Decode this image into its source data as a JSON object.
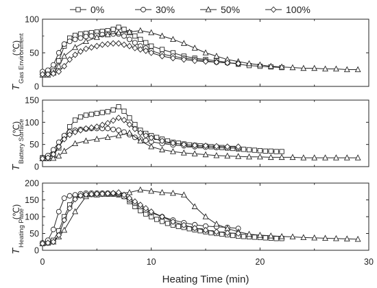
{
  "chart_data": {
    "type": "line",
    "legend": {
      "placement": "top",
      "entries": [
        {
          "name": "0%",
          "marker": "square"
        },
        {
          "name": "30%",
          "marker": "circle"
        },
        {
          "name": "50%",
          "marker": "triangle"
        },
        {
          "name": "100%",
          "marker": "diamond"
        }
      ]
    },
    "xlabel": "Heating Time (min)",
    "xlim": [
      0,
      30
    ],
    "xticks": [
      0,
      10,
      20,
      30
    ],
    "unit_label": "(℃)",
    "panels": [
      {
        "ylabel_main": "T",
        "ylabel_sub": "Gas Environment",
        "ylim": [
          0,
          100
        ],
        "yticks": [
          0,
          50,
          100
        ],
        "series": [
          {
            "name": "0%",
            "x": [
              0,
              0.5,
              1,
              1.5,
              2,
              2.5,
              3,
              3.5,
              4,
              4.5,
              5,
              5.5,
              6,
              6.5,
              7,
              7.5,
              8,
              8.5,
              9,
              9.5,
              10,
              11,
              12,
              13,
              14,
              15,
              16,
              17,
              18,
              19,
              20,
              21,
              22
            ],
            "y": [
              20,
              21,
              23,
              38,
              60,
              72,
              76,
              78,
              79,
              80,
              81,
              82,
              83,
              85,
              88,
              85,
              80,
              75,
              70,
              65,
              60,
              55,
              50,
              45,
              42,
              40,
              38,
              36,
              33,
              31,
              30,
              29,
              28
            ]
          },
          {
            "name": "30%",
            "x": [
              0,
              0.5,
              1,
              1.5,
              2,
              2.5,
              3,
              3.5,
              4,
              4.5,
              5,
              5.5,
              6,
              6.5,
              7,
              7.5,
              8,
              8.5,
              9,
              9.5,
              10,
              11,
              12,
              13,
              14,
              15,
              16,
              17,
              18
            ],
            "y": [
              22,
              24,
              32,
              50,
              63,
              67,
              70,
              72,
              74,
              75,
              76,
              77,
              78,
              78,
              78,
              75,
              70,
              65,
              60,
              57,
              53,
              48,
              45,
              42,
              40,
              38,
              36,
              35,
              34
            ]
          },
          {
            "name": "50%",
            "x": [
              0,
              0.5,
              1,
              1.5,
              2,
              3,
              4,
              5,
              6,
              7,
              8,
              9,
              10,
              11,
              12,
              13,
              14,
              15,
              16,
              17,
              18,
              19,
              20,
              21,
              22,
              23,
              24,
              25,
              26,
              27,
              28,
              29
            ],
            "y": [
              17,
              17,
              20,
              30,
              45,
              58,
              67,
              73,
              77,
              80,
              81,
              83,
              80,
              75,
              70,
              64,
              57,
              50,
              45,
              40,
              37,
              34,
              32,
              30,
              29,
              28,
              27,
              27,
              26,
              26,
              25,
              25
            ]
          },
          {
            "name": "100%",
            "x": [
              0,
              0.5,
              1,
              1.5,
              2,
              2.5,
              3,
              3.5,
              4,
              4.5,
              5,
              5.5,
              6,
              6.5,
              7,
              7.5,
              8,
              8.5,
              9,
              9.5,
              10,
              11,
              12,
              13,
              14,
              15,
              16,
              17,
              18
            ],
            "y": [
              18,
              18,
              19,
              22,
              30,
              40,
              47,
              52,
              56,
              58,
              60,
              62,
              63,
              64,
              64,
              62,
              60,
              57,
              55,
              53,
              50,
              45,
              42,
              40,
              38,
              37,
              36,
              35,
              34
            ]
          }
        ]
      },
      {
        "ylabel_main": "T",
        "ylabel_sub": "Battery Surface",
        "ylim": [
          0,
          150
        ],
        "yticks": [
          0,
          50,
          100,
          150
        ],
        "series": [
          {
            "name": "0%",
            "x": [
              0,
              0.5,
              1,
              1.5,
              2,
              2.5,
              3,
              3.5,
              4,
              4.5,
              5,
              5.5,
              6,
              6.5,
              7,
              7.5,
              8,
              8.5,
              9,
              9.5,
              10,
              10.5,
              11,
              11.5,
              12,
              12.5,
              13,
              13.5,
              14,
              14.5,
              15,
              15.5,
              16,
              16.5,
              17,
              17.5,
              18,
              18.5,
              19,
              19.5,
              20,
              20.5,
              21,
              21.5,
              22
            ],
            "y": [
              20,
              22,
              27,
              42,
              68,
              90,
              105,
              112,
              116,
              118,
              120,
              122,
              124,
              128,
              135,
              125,
              110,
              95,
              82,
              75,
              70,
              66,
              62,
              58,
              55,
              53,
              51,
              49,
              48,
              47,
              46,
              45,
              44,
              43,
              42,
              41,
              40,
              39,
              38,
              37,
              36,
              35,
              35,
              34,
              34
            ]
          },
          {
            "name": "30%",
            "x": [
              0,
              0.5,
              1,
              1.5,
              2,
              2.5,
              3,
              3.5,
              4,
              4.5,
              5,
              5.5,
              6,
              6.5,
              7,
              7.5,
              8,
              8.5,
              9,
              9.5,
              10,
              11,
              12,
              13,
              14,
              15,
              16,
              17,
              18
            ],
            "y": [
              20,
              25,
              38,
              55,
              70,
              78,
              82,
              84,
              85,
              86,
              86,
              86,
              86,
              84,
              82,
              78,
              72,
              66,
              62,
              59,
              56,
              52,
              49,
              47,
              45,
              44,
              43,
              42,
              42
            ]
          },
          {
            "name": "50%",
            "x": [
              0,
              0.5,
              1,
              1.5,
              2,
              3,
              4,
              5,
              6,
              7,
              8,
              9,
              10,
              11,
              12,
              13,
              14,
              15,
              16,
              17,
              18,
              19,
              20,
              21,
              22,
              23,
              24,
              25,
              26,
              27,
              28,
              29
            ],
            "y": [
              18,
              18,
              19,
              24,
              35,
              52,
              58,
              62,
              66,
              70,
              76,
              58,
              45,
              38,
              34,
              31,
              29,
              27,
              25,
              24,
              23,
              22,
              22,
              21,
              21,
              21,
              20,
              20,
              20,
              20,
              20,
              20
            ]
          },
          {
            "name": "100%",
            "x": [
              0,
              0.5,
              1,
              1.5,
              2,
              2.5,
              3,
              3.5,
              4,
              4.5,
              5,
              5.5,
              6,
              6.5,
              7,
              7.5,
              8,
              8.5,
              9,
              9.5,
              10,
              11,
              12,
              13,
              14,
              15,
              16,
              17,
              18
            ],
            "y": [
              18,
              20,
              28,
              45,
              62,
              72,
              78,
              82,
              86,
              88,
              90,
              94,
              98,
              104,
              110,
              105,
              95,
              85,
              76,
              70,
              65,
              58,
              53,
              50,
              48,
              47,
              46,
              45,
              45
            ]
          }
        ]
      },
      {
        "ylabel_main": "T",
        "ylabel_sub": "Heating Plate",
        "ylim": [
          0,
          200
        ],
        "yticks": [
          0,
          50,
          100,
          150,
          200
        ],
        "series": [
          {
            "name": "0%",
            "x": [
              0,
              0.5,
              1,
              1.5,
              2,
              2.5,
              3,
              3.5,
              4,
              4.5,
              5,
              5.5,
              6,
              6.5,
              7,
              7.5,
              8,
              8.5,
              9,
              9.5,
              10,
              10.5,
              11,
              11.5,
              12,
              12.5,
              13,
              13.5,
              14,
              14.5,
              15,
              15.5,
              16,
              16.5,
              17,
              17.5,
              18,
              18.5,
              19,
              19.5,
              20,
              20.5,
              21,
              21.5,
              22
            ],
            "y": [
              20,
              22,
              30,
              58,
              100,
              135,
              158,
              163,
              165,
              166,
              166,
              167,
              167,
              167,
              165,
              160,
              145,
              130,
              118,
              108,
              100,
              92,
              86,
              80,
              75,
              71,
              68,
              64,
              61,
              58,
              55,
              52,
              50,
              48,
              46,
              44,
              42,
              41,
              40,
              39,
              38,
              37,
              36,
              35,
              35
            ]
          },
          {
            "name": "30%",
            "x": [
              0,
              0.5,
              1,
              1.5,
              2,
              2.5,
              3,
              3.5,
              4,
              4.5,
              5,
              5.5,
              6,
              6.5,
              7,
              7.5,
              8,
              8.5,
              9,
              9.5,
              10,
              11,
              12,
              13,
              14,
              15,
              16,
              17,
              18
            ],
            "y": [
              22,
              30,
              62,
              115,
              155,
              162,
              165,
              168,
              170,
              170,
              170,
              170,
              170,
              169,
              167,
              160,
              150,
              140,
              130,
              120,
              112,
              100,
              90,
              82,
              76,
              72,
              70,
              68,
              65
            ]
          },
          {
            "name": "50%",
            "x": [
              0,
              0.5,
              1,
              1.5,
              2,
              3,
              4,
              5,
              6,
              7,
              8,
              9,
              10,
              11,
              12,
              13,
              14,
              15,
              16,
              17,
              18,
              19,
              20,
              21,
              22,
              23,
              24,
              25,
              26,
              27,
              28,
              29
            ],
            "y": [
              20,
              22,
              25,
              40,
              60,
              115,
              160,
              165,
              168,
              170,
              172,
              180,
              176,
              172,
              170,
              165,
              130,
              100,
              78,
              65,
              55,
              48,
              45,
              43,
              41,
              40,
              38,
              37,
              36,
              35,
              34,
              33
            ]
          },
          {
            "name": "100%",
            "x": [
              0,
              0.5,
              1,
              1.5,
              2,
              2.5,
              3,
              3.5,
              4,
              4.5,
              5,
              5.5,
              6,
              6.5,
              7,
              7.5,
              8,
              8.5,
              9,
              9.5,
              10,
              11,
              12,
              13,
              14,
              15,
              16,
              17,
              18
            ],
            "y": [
              20,
              22,
              25,
              45,
              90,
              125,
              152,
              163,
              166,
              167,
              168,
              168,
              169,
              170,
              172,
              165,
              155,
              145,
              135,
              125,
              115,
              100,
              85,
              75,
              66,
              60,
              55,
              52,
              50
            ]
          }
        ]
      }
    ]
  }
}
